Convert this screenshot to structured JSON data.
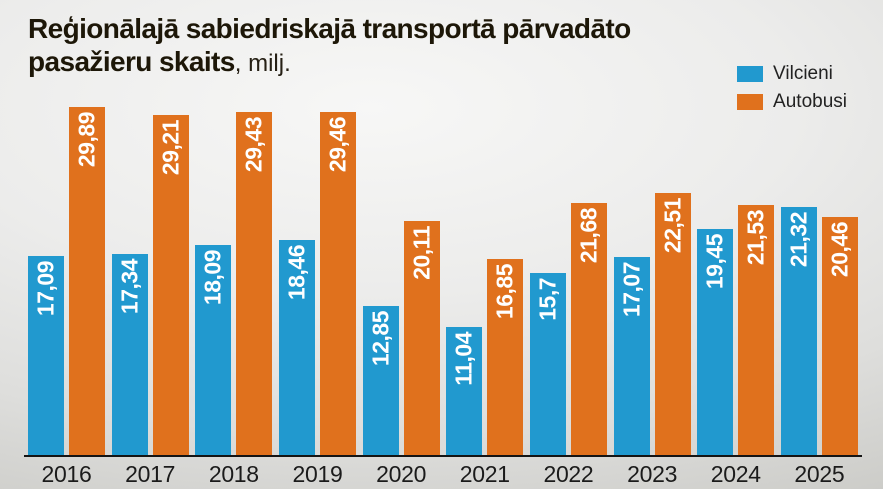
{
  "title": {
    "line1": "Reģionālajā sabiedriskajā transportā pārvadāto",
    "line2_bold": "pasažieru skaits",
    "line2_suffix": ", milj."
  },
  "legend": {
    "items": [
      {
        "label": "Vilcieni",
        "color": "#2199cf"
      },
      {
        "label": "Autobusi",
        "color": "#e0711d"
      }
    ]
  },
  "colors": {
    "train_blue": "#2199cf",
    "bus_orange": "#e0711d",
    "axis": "#141414",
    "title_text": "#1d1708",
    "value_label_text": "#ffffff"
  },
  "chart_data": {
    "type": "bar",
    "title": "Reģionālajā sabiedriskajā transportā pārvadāto pasažieru skaits, milj.",
    "categories": [
      "2016",
      "2017",
      "2018",
      "2019",
      "2020",
      "2021",
      "2022",
      "2023",
      "2024",
      "2025"
    ],
    "series": [
      {
        "name": "Vilcieni",
        "color": "#2199cf",
        "values": [
          17.09,
          17.34,
          18.09,
          18.46,
          12.85,
          11.04,
          15.7,
          17.07,
          19.45,
          21.32
        ],
        "labels": [
          "17,09",
          "17,34",
          "18,09",
          "18,46",
          "12,85",
          "11,04",
          "15,7",
          "17,07",
          "19,45",
          "21,32"
        ]
      },
      {
        "name": "Autobusi",
        "color": "#e0711d",
        "values": [
          29.89,
          29.21,
          29.43,
          29.46,
          20.11,
          16.85,
          21.68,
          22.51,
          21.53,
          20.46
        ],
        "labels": [
          "29,89",
          "29,21",
          "29,43",
          "29,46",
          "20,11",
          "16,85",
          "21,68",
          "22,51",
          "21,53",
          "20,46"
        ]
      }
    ],
    "ylim": [
      0,
      30
    ],
    "grid": false,
    "legend_position": "top-right",
    "value_label_rotation": -90,
    "xlabel": "",
    "ylabel": ""
  }
}
